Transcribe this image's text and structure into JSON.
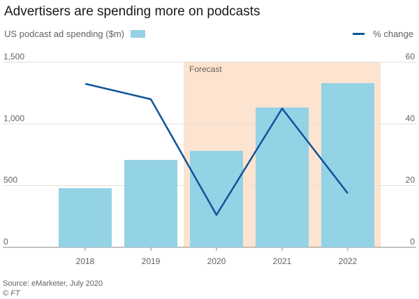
{
  "header": {
    "title": "Advertisers are spending more on podcasts"
  },
  "legend": {
    "bars_label": "US podcast ad spending ($m)",
    "line_label": "% change"
  },
  "footer": {
    "source": "Source: eMarketer, July 2020",
    "credit": "© FT"
  },
  "colors": {
    "bar": "#94d2e6",
    "line": "#0f5499",
    "forecast_band": "#fde4d0",
    "grid": "#e3ddd8",
    "axis_text": "#66605c"
  },
  "chart_data": {
    "type": "bar",
    "categories": [
      "2018",
      "2019",
      "2020",
      "2021",
      "2022"
    ],
    "series": [
      {
        "name": "US podcast ad spending ($m)",
        "type": "bar",
        "axis": "left",
        "values": [
          479,
          708,
          782,
          1133,
          1330
        ]
      },
      {
        "name": "% change",
        "type": "line",
        "axis": "right",
        "values": [
          53,
          48,
          10.5,
          45,
          17.5
        ]
      }
    ],
    "y_left": {
      "lim": [
        0,
        1500
      ],
      "ticks": [
        0,
        500,
        1000,
        1500
      ],
      "tick_labels": [
        "0",
        "500",
        "1,000",
        "1,500"
      ]
    },
    "y_right": {
      "lim": [
        0,
        60
      ],
      "ticks": [
        0,
        20,
        40,
        60
      ],
      "tick_labels": [
        "0",
        "20",
        "40",
        "60"
      ]
    },
    "annotations": [
      {
        "text": "Forecast",
        "from_category": "2020",
        "to_category": "2022"
      }
    ],
    "grid": true,
    "legend_placement": "top"
  }
}
